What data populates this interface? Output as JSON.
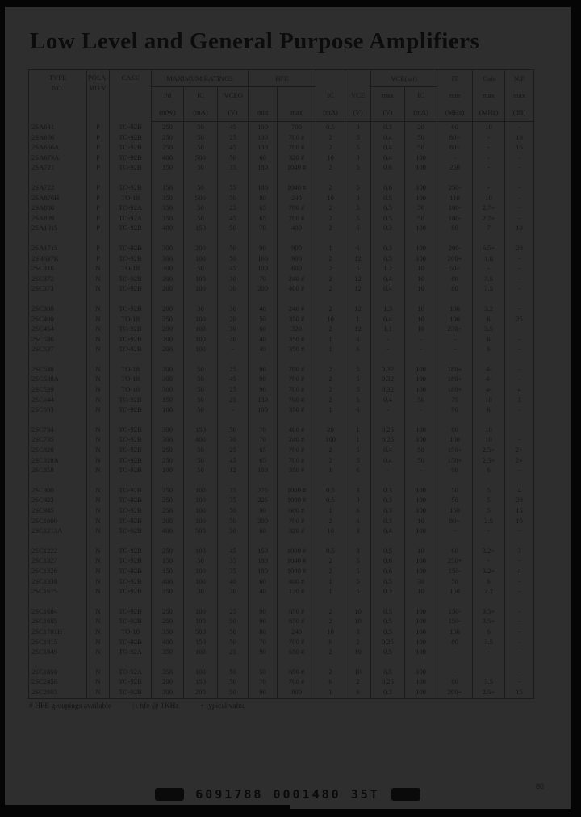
{
  "page": {
    "title": "Low Level and General Purpose Amplifiers",
    "page_number": "80",
    "barcode_text": "6091788 0001480 35T"
  },
  "colors": {
    "page_bg": "#2e2e2e",
    "ink": "#111111",
    "frame": "#050505"
  },
  "footnote": {
    "hfe_groupings": "# HFE groupings available",
    "hfe_1khz": "| :  hfe @ 1KHz",
    "typical": "+ typical value"
  },
  "table": {
    "header": {
      "type": "TYPE",
      "no": "NO.",
      "pola": "POLA-",
      "rity": "RITY",
      "case": "CASE",
      "max_ratings": "MAXIMUM  RATINGS",
      "pd": "Pd",
      "pd_u": "(mW)",
      "ic1": "IC",
      "ic1_u": "(mA)",
      "vceo": "'VCEO",
      "vceo_u": "(V)",
      "hfe": "HFE",
      "hfe_min": "min",
      "hfe_max": "max",
      "ic2": "IC",
      "ic2_u": "(mA)",
      "vce": "VCE",
      "vce_u": "(V)",
      "vcesat": "VCE(sat)",
      "vcesat_max": "max",
      "vcesat_max_u": "(V)",
      "ic3": "IC",
      "ic3_u": "(mA)",
      "ft": "fT",
      "ft_min": "min",
      "ft_u": "(MHz)",
      "cob": "Cob",
      "cob_max": "max",
      "cob_u": "(MHz)",
      "nf": "N.F",
      "nf_max": "max",
      "nf_u": "(dB)"
    },
    "groups": [
      {
        "rows": [
          [
            "2SA641",
            "P",
            "TO-92B",
            "250",
            "50",
            "45",
            "100",
            "700",
            "0.5",
            "3",
            "0.3",
            "20",
            "60",
            "10",
            "-"
          ],
          [
            "2SA666",
            "P",
            "TO-92B",
            "250",
            "50",
            "25",
            "130",
            "700 #",
            "2",
            "5",
            "0.4",
            "50",
            "80+",
            "-",
            "16"
          ],
          [
            "2SA666A",
            "P",
            "TO-92B",
            "250",
            "50",
            "45",
            "130",
            "700 #",
            "2",
            "5",
            "0.4",
            "50",
            "80+",
            "-",
            "16"
          ],
          [
            "2SA673A",
            "P",
            "TO-92B",
            "400",
            "500",
            "50",
            "60",
            "320 #",
            "10",
            "3",
            "0.4",
            "100",
            "-",
            "-",
            "-"
          ],
          [
            "2SA721",
            "P",
            "TO-92B",
            "150",
            "50",
            "35",
            "180",
            "1040 #",
            "2",
            "5",
            "0.6",
            "100",
            "250",
            "-",
            "-"
          ]
        ]
      },
      {
        "rows": [
          [
            "2SA722",
            "P",
            "TO-92B",
            "150",
            "50",
            "55",
            "180",
            "1040 #",
            "2",
            "5",
            "0.6",
            "100",
            "250-",
            "-",
            "-"
          ],
          [
            "2SA876H",
            "P",
            "TO-18",
            "350",
            "500",
            "50",
            "80",
            "240",
            "10",
            "3",
            "0.5",
            "100",
            "110",
            "10",
            "-"
          ],
          [
            "2SA888",
            "P",
            "TO-92A",
            "350",
            "50",
            "25",
            "65",
            "700 #",
            "2",
            "5",
            "0.5",
            "50",
            "100-",
            "2.7+",
            "-"
          ],
          [
            "2SA889",
            "P",
            "TO-92A",
            "350",
            "50",
            "45",
            "65",
            "700 #",
            "2",
            "5",
            "0.5",
            "50",
            "100-",
            "2.7+",
            "-"
          ],
          [
            "2SA1015",
            "P",
            "TO-92B",
            "400",
            "150",
            "50",
            "70",
            "400",
            "2",
            "6",
            "0.3",
            "100",
            "80",
            "7",
            "10"
          ]
        ]
      },
      {
        "rows": [
          [
            "2SA1715",
            "P",
            "TO-92B",
            "300",
            "200",
            "50",
            "90",
            "900",
            "1",
            "6",
            "0.3",
            "100",
            "200-",
            "6.5+",
            "20"
          ],
          [
            "2SB637K",
            "P",
            "TO-92B",
            "300",
            "100",
            "50",
            "160",
            "900",
            "2",
            "12",
            "0.5",
            "100",
            "200+",
            "1.8",
            "-"
          ],
          [
            "2SC316",
            "N",
            "TO-18",
            "300",
            "50",
            "45",
            "100",
            "600",
            "2",
            "5",
            "1.2",
            "10",
            "50+",
            "-",
            "-"
          ],
          [
            "2SC372",
            "N",
            "TO-92B",
            "200",
            "100",
            "30",
            "70",
            "240 #",
            "2",
            "12",
            "0.4",
            "10",
            "80",
            "3.5",
            "-"
          ],
          [
            "2SC373",
            "N",
            "TO-92B",
            "200",
            "100",
            "30",
            "200",
            "400 #",
            "2",
            "12",
            "0.4",
            "10",
            "80",
            "3.5",
            "-"
          ]
        ]
      },
      {
        "rows": [
          [
            "2SC380",
            "N",
            "TO-92B",
            "200",
            "30",
            "30",
            "40",
            "240 #",
            "2",
            "12",
            "1.3",
            "10",
            "100",
            "3.2",
            "-"
          ],
          [
            "2SC400",
            "N",
            "TO-18",
            "250",
            "100",
            "20",
            "50",
            "350 #",
            "10",
            "1",
            "0.4",
            "10",
            "100",
            "6",
            "25"
          ],
          [
            "2SC454",
            "N",
            "TO-92B",
            "200",
            "100",
            "30",
            "60",
            "320",
            "2",
            "12",
            "1.1",
            "10",
            "230+",
            "3.5",
            ""
          ],
          [
            "2SC536",
            "N",
            "TO-92B",
            "200",
            "100",
            "20",
            "40",
            "350 #",
            "1",
            "6",
            "-",
            "-",
            "-",
            "6",
            "-"
          ],
          [
            "2SC537",
            "N",
            "TO-92B",
            "200",
            "100",
            "-",
            "40",
            "350 #",
            "1",
            "6",
            "-",
            "-",
            "-",
            "6",
            "-"
          ]
        ]
      },
      {
        "rows": [
          [
            "2SC538",
            "N",
            "TO-18",
            "300",
            "50",
            "25",
            "90",
            "700 #",
            "2",
            "5",
            "0.32",
            "100",
            "180+",
            "4-",
            "-"
          ],
          [
            "2SC538A",
            "N",
            "TO-18",
            "300",
            "50",
            "45",
            "90",
            "700 #",
            "2",
            "5",
            "0.32",
            "100",
            "180+",
            "4-",
            "-"
          ],
          [
            "2SC539",
            "N",
            "TO-18",
            "300",
            "50",
            "25",
            "90",
            "700 #",
            "2",
            "5",
            "0.32",
            "100",
            "180+",
            "4-",
            "4"
          ],
          [
            "2SC644",
            "N",
            "TO-92B",
            "150",
            "50",
            "25",
            "130",
            "700 #",
            "2",
            "5",
            "0.4",
            "50",
            "75",
            "10",
            "3"
          ],
          [
            "2SC693",
            "N",
            "TO-92B",
            "100",
            "50",
            "-",
            "100",
            "350 #",
            "1",
            "6",
            "-",
            "-",
            "90",
            "6",
            "-"
          ]
        ]
      },
      {
        "rows": [
          [
            "2SC734",
            "N",
            "TO-92B",
            "300",
            "150",
            "50",
            "70",
            "400 #",
            "20",
            "1",
            "0.25",
            "100",
            "80",
            "10",
            ""
          ],
          [
            "2SC735",
            "N",
            "TO-92B",
            "300",
            "400",
            "30",
            "70",
            "240 #",
            "100",
            "1",
            "0.25",
            "100",
            "100",
            "10",
            "-"
          ],
          [
            "2SC828",
            "N",
            "TO-92B",
            "250",
            "50",
            "25",
            "65",
            "700 #",
            "2",
            "5",
            "0.4",
            "50",
            "150+",
            "2.5+",
            "2+"
          ],
          [
            "2SC828A",
            "N",
            "TO-92B",
            "250",
            "50",
            "45",
            "65",
            "700 #",
            "2",
            "5",
            "0.4",
            "50",
            "150+",
            "2.5+",
            "2+"
          ],
          [
            "2SC858",
            "N",
            "TO-92B",
            "100",
            "50",
            "12",
            "100",
            "350 #",
            "1",
            "6",
            "-",
            "-",
            "90",
            "6",
            "-"
          ]
        ]
      },
      {
        "rows": [
          [
            "2SC900",
            "N",
            "TO-92B",
            "250",
            "100",
            "35",
            "225",
            "1000 #",
            "0.5",
            "3",
            "0.3",
            "100",
            "50",
            "5",
            "4"
          ],
          [
            "2SC923",
            "N",
            "TO-92B",
            "250",
            "100",
            "35",
            "225",
            "1000 #",
            "0.5",
            "3",
            "0.3",
            "100",
            "50",
            "5",
            "20"
          ],
          [
            "2SC945",
            "N",
            "TO-92B",
            "250",
            "100",
            "50",
            "90",
            "600 #",
            "1",
            "6",
            "0.3",
            "100",
            "150",
            "5",
            "15"
          ],
          [
            "2SC1000",
            "N",
            "TO-92B",
            "200",
            "100",
            "50",
            "200",
            "700 #",
            "2",
            "6",
            "0.3",
            "10",
            "80+",
            "2.5",
            "10"
          ],
          [
            "2SC1213A",
            "N",
            "TO-92B",
            "400",
            "500",
            "50",
            "60",
            "320 #",
            "10",
            "3",
            "0.4",
            "100",
            "-",
            "-",
            "-"
          ]
        ]
      },
      {
        "rows": [
          [
            "2SC1222",
            "N",
            "TO-92B",
            "250",
            "100",
            "45",
            "150",
            "1000 #",
            "0.5",
            "3",
            "0.5",
            "10",
            "60",
            "3.2+",
            "3"
          ],
          [
            "2SC1327",
            "N",
            "TO-92B",
            "150",
            "50",
            "35",
            "180",
            "1040 #",
            "2",
            "5",
            "0.6",
            "100",
            "250+",
            "-",
            "-"
          ],
          [
            "2SC1328",
            "N",
            "TO-92B",
            "150",
            "100",
            "35",
            "180",
            "1040 #",
            "2",
            "5",
            "0.6",
            "100",
            "150-",
            "3.2+",
            "4"
          ],
          [
            "2SC1330",
            "N",
            "TO-92B",
            "400",
            "100",
            "40",
            "60",
            "400 #",
            "1",
            "5",
            "0.5",
            "30",
            "50",
            "6",
            "-"
          ],
          [
            "2SC1675",
            "N",
            "TO-92B",
            "250",
            "30",
            "30",
            "40",
            "120 #",
            "1",
            "5",
            "0.3",
            "10",
            "150",
            "2.2",
            "-"
          ]
        ]
      },
      {
        "rows": [
          [
            "2SC1684",
            "N",
            "TO-92B",
            "250",
            "100",
            "25",
            "90",
            "650 #",
            "2",
            "10",
            "0.5",
            "100",
            "150-",
            "3.5+",
            "-"
          ],
          [
            "2SC1685",
            "N",
            "TO-92B",
            "250",
            "100",
            "50",
            "90",
            "650 #",
            "2",
            "10",
            "0.5",
            "100",
            "150-",
            "3.5+",
            "-"
          ],
          [
            "2SC1781H",
            "N",
            "TO-18",
            "350",
            "500",
            "50",
            "80",
            "240",
            "10",
            "3",
            "0.5",
            "100",
            "150",
            "6",
            "-"
          ],
          [
            "2SC1815",
            "N",
            "TO-92B",
            "400",
            "150",
            "50",
            "70",
            "700 #",
            "6",
            "2",
            "0.25",
            "100",
            "80",
            "3.5",
            "-"
          ],
          [
            "2SC1849",
            "N",
            "TO-92A",
            "350",
            "100",
            "25",
            "90",
            "650 #",
            "2",
            "10",
            "0.5",
            "100",
            "-",
            "-",
            "-"
          ]
        ]
      },
      {
        "rows": [
          [
            "2SC1850",
            "N",
            "TO-92A",
            "350",
            "100",
            "50",
            "50",
            "650 #",
            "2",
            "10",
            "0.5",
            "100",
            "-",
            "",
            "-"
          ],
          [
            "2SC2458",
            "N",
            "TO-92B",
            "200",
            "150",
            "50",
            "70",
            "700 #",
            "6",
            "2",
            "0.25",
            "100",
            "80",
            "3.5",
            "-"
          ],
          [
            "2SC2603",
            "N",
            "TO-92B",
            "300",
            "200",
            "50",
            "90",
            "800",
            "1",
            "6",
            "0.3",
            "100",
            "200+",
            "2.5+",
            "15"
          ]
        ]
      }
    ]
  }
}
